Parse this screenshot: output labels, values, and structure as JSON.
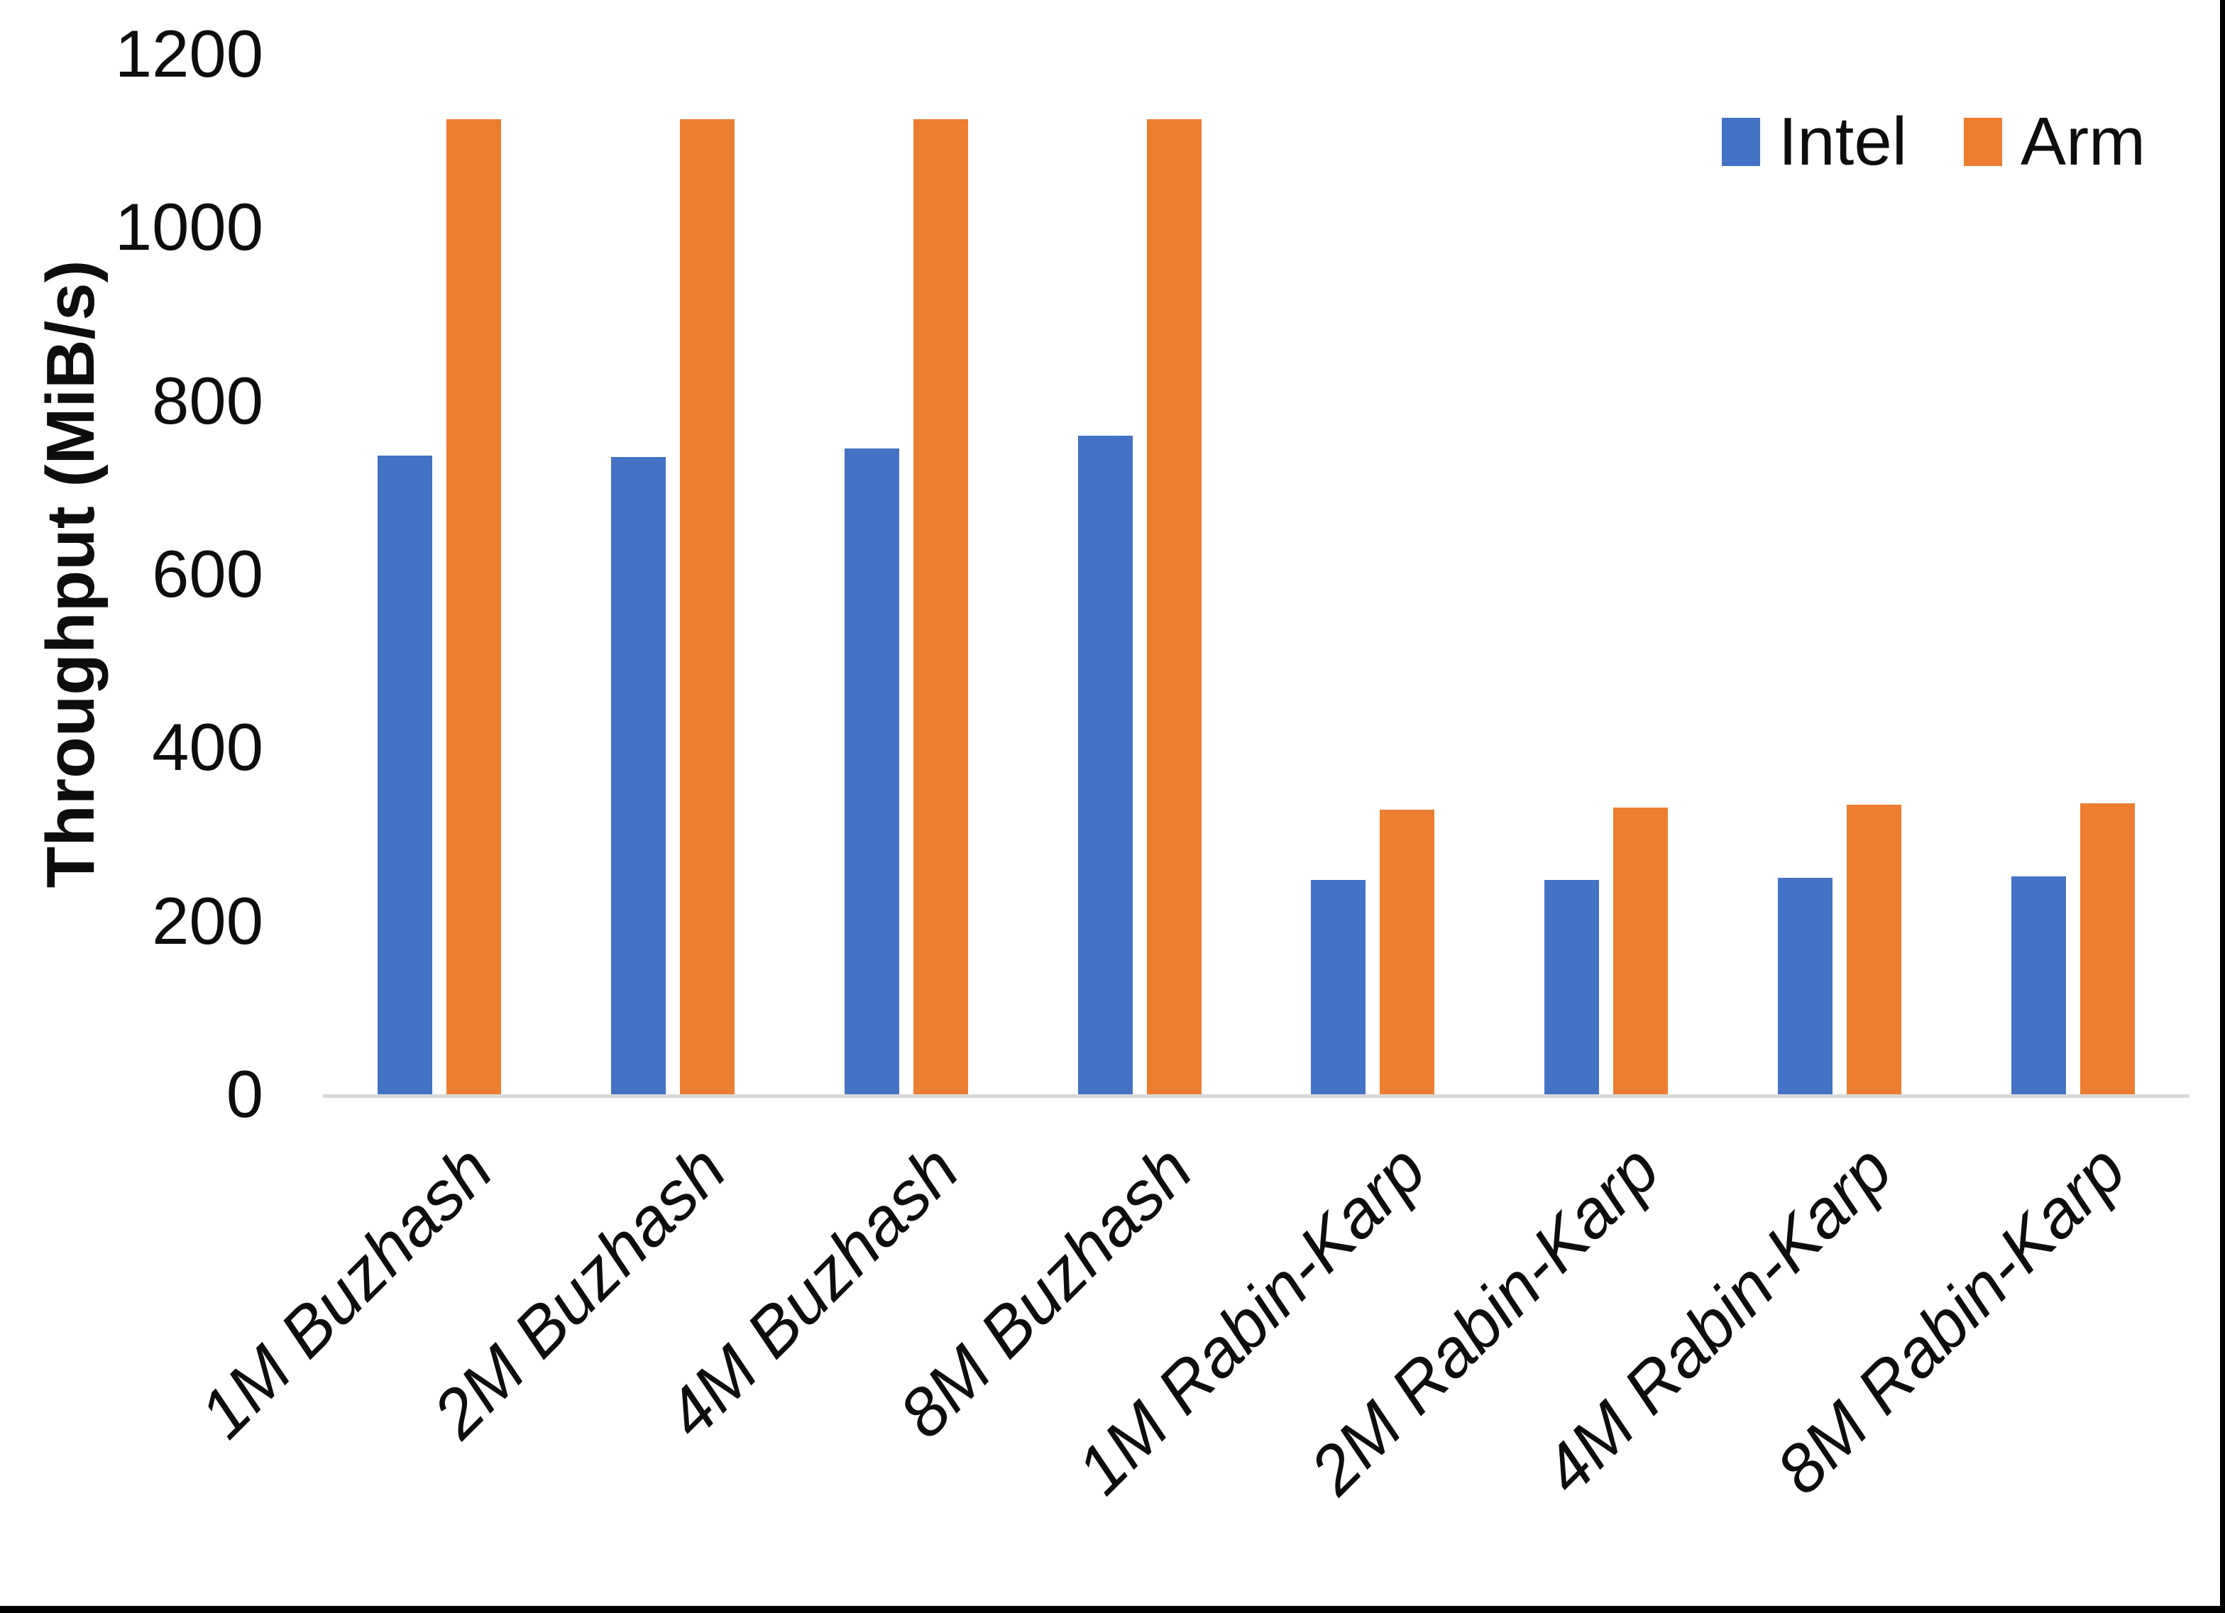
{
  "page": {
    "background": "#ffffff",
    "frame_border_color": "#000000"
  },
  "legend": {
    "position": "top-right",
    "items": [
      {
        "label": "Intel",
        "color": "#4472C4"
      },
      {
        "label": "Arm",
        "color": "#ED7D31"
      }
    ]
  },
  "y_axis": {
    "title": "Throughput (MiB/s)",
    "min": 0,
    "max": 1200,
    "tick_step": 200,
    "tick_labels": [
      "0",
      "200",
      "400",
      "600",
      "800",
      "1000",
      "1200"
    ]
  },
  "chart_data": {
    "type": "bar",
    "title": "",
    "xlabel": "",
    "ylabel": "Throughput (MiB/s)",
    "ylim": [
      0,
      1200
    ],
    "grid": false,
    "legend_position": "top-right",
    "axis_line_color": "#d9d9d9",
    "categories": [
      "1M Buzhash",
      "2M Buzhash",
      "4M Buzhash",
      "8M Buzhash",
      "1M Rabin-Karp",
      "2M Rabin-Karp",
      "4M Rabin-Karp",
      "8M Rabin-Karp"
    ],
    "series": [
      {
        "name": "Intel",
        "color": "#4472C4",
        "values": [
          737,
          735,
          745,
          760,
          247,
          247,
          250,
          251
        ]
      },
      {
        "name": "Arm",
        "color": "#ED7D31",
        "values": [
          1125,
          1125,
          1125,
          1125,
          328,
          331,
          334,
          336
        ]
      }
    ]
  }
}
